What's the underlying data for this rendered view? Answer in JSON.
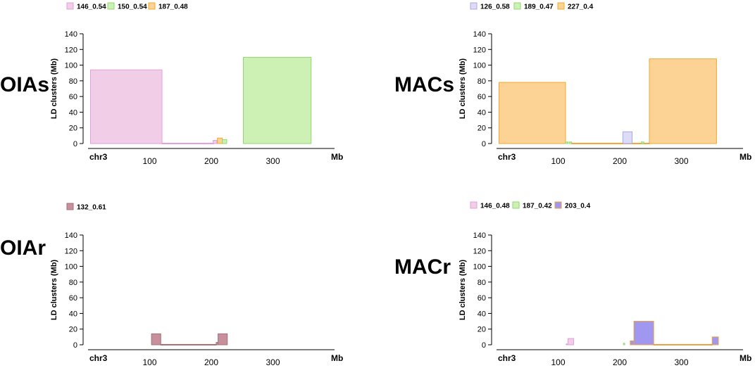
{
  "chart_data": [
    {
      "type": "bar",
      "panel_label": "OIAs",
      "ylabel": "LD clusters (Mb)",
      "ylim": [
        0,
        140
      ],
      "yticks": [
        0,
        20,
        40,
        60,
        80,
        100,
        120,
        140
      ],
      "xlim": [
        0,
        400
      ],
      "xticks": [
        100,
        200,
        300
      ],
      "chr_label": "chr3",
      "unit_label": "Mb",
      "legend": [
        {
          "name": "146_0.54",
          "fill": "#f2cde8",
          "stroke": "#e0a0d8"
        },
        {
          "name": "150_0.54",
          "fill": "#cdf0b4",
          "stroke": "#90d870"
        },
        {
          "name": "187_0.48",
          "fill": "#fcd394",
          "stroke": "#f0a830"
        }
      ],
      "clusters": [
        {
          "series": "146_0.54",
          "start": 4,
          "end": 120,
          "value": 94
        },
        {
          "series": "146_0.54",
          "start": 120,
          "end": 204,
          "value": 0.5
        },
        {
          "series": "146_0.54",
          "start": 203,
          "end": 209,
          "value": 4
        },
        {
          "series": "187_0.48",
          "start": 210,
          "end": 218,
          "value": 7
        },
        {
          "series": "150_0.54",
          "start": 218,
          "end": 225,
          "value": 5
        },
        {
          "series": "150_0.54",
          "start": 252,
          "end": 362,
          "value": 110
        }
      ]
    },
    {
      "type": "bar",
      "panel_label": "MACs",
      "ylabel": "LD clusters (Mb)",
      "ylim": [
        0,
        140
      ],
      "yticks": [
        0,
        20,
        40,
        60,
        80,
        100,
        120,
        140
      ],
      "xlim": [
        0,
        400
      ],
      "xticks": [
        100,
        200,
        300
      ],
      "chr_label": "chr3",
      "unit_label": "Mb",
      "legend": [
        {
          "name": "126_0.58",
          "fill": "#dcdcf8",
          "stroke": "#a8a8e8"
        },
        {
          "name": "189_0.47",
          "fill": "#cdf0b4",
          "stroke": "#90d870"
        },
        {
          "name": "227_0.4",
          "fill": "#fcd394",
          "stroke": "#f0a830"
        }
      ],
      "clusters": [
        {
          "series": "227_0.4",
          "start": 4,
          "end": 112,
          "value": 78
        },
        {
          "series": "189_0.47",
          "start": 112,
          "end": 116,
          "value": 2
        },
        {
          "series": "189_0.47",
          "start": 118,
          "end": 122,
          "value": 2
        },
        {
          "series": "227_0.4",
          "start": 122,
          "end": 248,
          "value": 0.5
        },
        {
          "series": "126_0.58",
          "start": 205,
          "end": 220,
          "value": 15
        },
        {
          "series": "189_0.47",
          "start": 235,
          "end": 239,
          "value": 2
        },
        {
          "series": "227_0.4",
          "start": 248,
          "end": 357,
          "value": 108
        }
      ]
    },
    {
      "type": "bar",
      "panel_label": "OIAr",
      "ylabel": "LD clusters (Mb)",
      "ylim": [
        0,
        140
      ],
      "yticks": [
        0,
        20,
        40,
        60,
        80,
        100,
        120,
        140
      ],
      "xlim": [
        0,
        400
      ],
      "xticks": [
        100,
        200,
        300
      ],
      "chr_label": "chr3",
      "unit_label": "Mb",
      "legend": [
        {
          "name": "132_0.61",
          "fill": "#c8909c",
          "stroke": "#a07078"
        }
      ],
      "clusters": [
        {
          "series": "132_0.61",
          "start": 103,
          "end": 118,
          "value": 14
        },
        {
          "series": "132_0.61",
          "start": 118,
          "end": 208,
          "value": 0.5
        },
        {
          "series": "132_0.61",
          "start": 208,
          "end": 211,
          "value": 3
        },
        {
          "series": "132_0.61",
          "start": 211,
          "end": 226,
          "value": 14
        }
      ]
    },
    {
      "type": "bar",
      "panel_label": "MACr",
      "ylabel": "LD clusters (Mb)",
      "ylim": [
        0,
        140
      ],
      "yticks": [
        0,
        20,
        40,
        60,
        80,
        100,
        120,
        140
      ],
      "xlim": [
        0,
        400
      ],
      "xticks": [
        100,
        200,
        300
      ],
      "chr_label": "chr3",
      "unit_label": "Mb",
      "legend": [
        {
          "name": "146_0.48",
          "fill": "#f2cde8",
          "stroke": "#e0a0d8"
        },
        {
          "name": "187_0.42",
          "fill": "#cdf0b4",
          "stroke": "#90d870"
        },
        {
          "name": "203_0.4",
          "fill": "#a098f0",
          "stroke": "#e8a040"
        }
      ],
      "clusters": [
        {
          "series": "146_0.48",
          "start": 113,
          "end": 116,
          "value": 1
        },
        {
          "series": "146_0.48",
          "start": 116,
          "end": 125,
          "value": 8
        },
        {
          "series": "187_0.42",
          "start": 206,
          "end": 208,
          "value": 2
        },
        {
          "series": "203_0.4",
          "start": 217,
          "end": 223,
          "value": 5
        },
        {
          "series": "203_0.4",
          "start": 223,
          "end": 255,
          "value": 30
        },
        {
          "series": "203_0.4",
          "start": 255,
          "end": 350,
          "value": 0.5
        },
        {
          "series": "203_0.4",
          "start": 350,
          "end": 360,
          "value": 10
        }
      ]
    }
  ]
}
